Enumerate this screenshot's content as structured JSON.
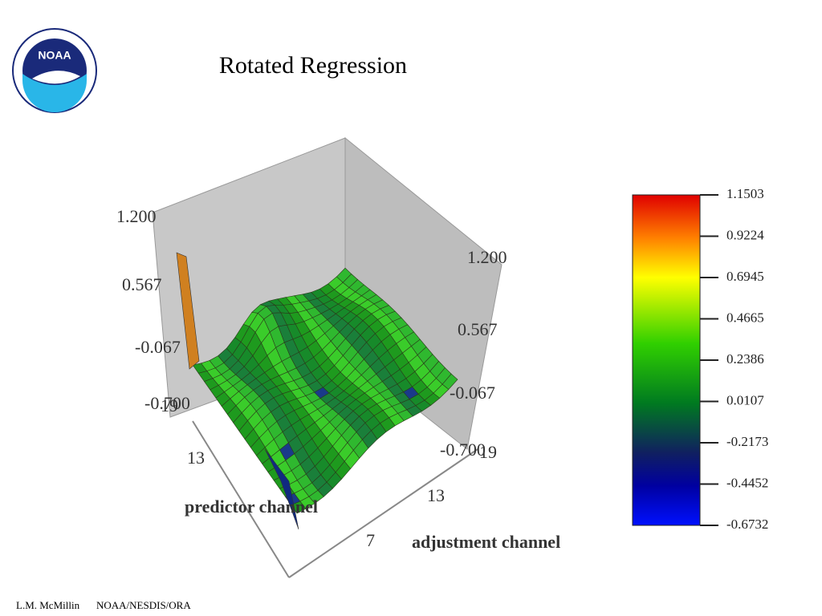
{
  "header": {
    "title": "Rotated Regression",
    "logo_text": "NOAA"
  },
  "figure": {
    "z_axis_left": [
      "1.200",
      "0.567",
      "-0.067",
      "-0.700"
    ],
    "z_axis_right": [
      "1.200",
      "0.567",
      "-0.067",
      "-0.700"
    ],
    "predictor_axis": {
      "label": "predictor channel",
      "ticks": [
        "19",
        "13"
      ]
    },
    "adjustment_axis": {
      "label": "adjustment channel",
      "ticks": [
        "19",
        "13",
        "7"
      ]
    },
    "colorbar": {
      "ticks": [
        "1.1503",
        "0.9224",
        "0.6945",
        "0.4665",
        "0.2386",
        "0.0107",
        "-0.2173",
        "-0.4452",
        "-0.6732"
      ]
    }
  },
  "footer": {
    "author": "L.M. McMillin",
    "org": "NOAA/NESDIS/ORA"
  }
}
